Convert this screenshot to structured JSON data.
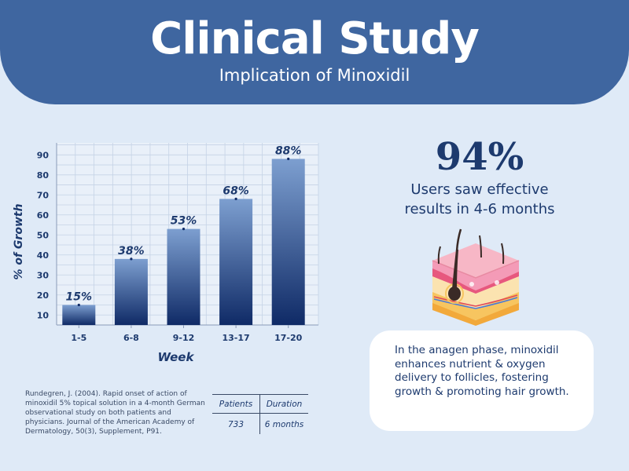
{
  "header": {
    "title": "Clinical Study",
    "subtitle": "Implication of Minoxidil"
  },
  "chart_data": {
    "type": "bar",
    "categories": [
      "1-5",
      "6-8",
      "9-12",
      "13-17",
      "17-20"
    ],
    "values": [
      15,
      38,
      53,
      68,
      88
    ],
    "data_labels": [
      "15%",
      "38%",
      "53%",
      "68%",
      "88%"
    ],
    "title": "",
    "xlabel": "Week",
    "ylabel": "% of Growth",
    "yticks": [
      10,
      20,
      30,
      40,
      50,
      60,
      70,
      80,
      90
    ],
    "ylim": [
      5,
      96
    ],
    "grid": true,
    "legend": "none",
    "colors": {
      "bar_top": "#7d9fd0",
      "bar_bottom": "#0f2a66",
      "grid": "#c5d3e6",
      "label": "#1d3a6e"
    }
  },
  "stat": {
    "value": "94%",
    "caption_line1": "Users saw effective",
    "caption_line2": "results in 4-6 months"
  },
  "card": {
    "text": "In the anagen phase, minoxidil enhances nutrient & oxygen delivery to follicles, fostering growth & promoting hair growth."
  },
  "reference": {
    "text": "Rundegren, J. (2004). Rapid onset of action of minoxidil 5% topical solution in a 4-month German observational study on both patients and physicians. Journal of the American Academy of Dermatology, 50(3), Supplement, P91."
  },
  "study_table": {
    "headers": [
      "Patients",
      "Duration"
    ],
    "values": [
      "733",
      "6 months"
    ]
  },
  "skin_icon": "skin-layers-hair-follicle-icon"
}
